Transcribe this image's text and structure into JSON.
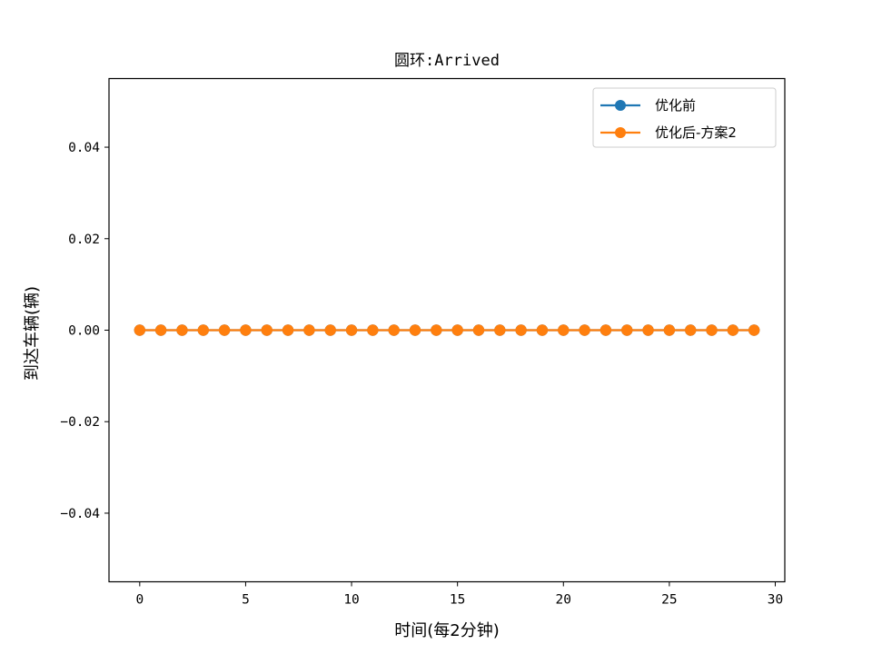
{
  "chart_data": {
    "type": "line",
    "title": "圆环:Arrived",
    "xlabel": "时间(每2分钟)",
    "ylabel": "到达车辆(辆)",
    "x": [
      0,
      1,
      2,
      3,
      4,
      5,
      6,
      7,
      8,
      9,
      10,
      11,
      12,
      13,
      14,
      15,
      16,
      17,
      18,
      19,
      20,
      21,
      22,
      23,
      24,
      25,
      26,
      27,
      28,
      29
    ],
    "series": [
      {
        "name": "优化前",
        "color": "#1f77b4",
        "marker": "circle",
        "values": [
          0,
          0,
          0,
          0,
          0,
          0,
          0,
          0,
          0,
          0,
          0,
          0,
          0,
          0,
          0,
          0,
          0,
          0,
          0,
          0,
          0,
          0,
          0,
          0,
          0,
          0,
          0,
          0,
          0,
          0
        ]
      },
      {
        "name": "优化后-方案2",
        "color": "#ff7f0e",
        "marker": "circle",
        "values": [
          0,
          0,
          0,
          0,
          0,
          0,
          0,
          0,
          0,
          0,
          0,
          0,
          0,
          0,
          0,
          0,
          0,
          0,
          0,
          0,
          0,
          0,
          0,
          0,
          0,
          0,
          0,
          0,
          0,
          0
        ]
      }
    ],
    "xlim": [
      -1.45,
      30.45
    ],
    "ylim": [
      -0.055,
      0.055
    ],
    "xticks": [
      0,
      5,
      10,
      15,
      20,
      25,
      30
    ],
    "xtick_labels": [
      "0",
      "5",
      "10",
      "15",
      "20",
      "25",
      "30"
    ],
    "yticks": [
      0.04,
      0.02,
      0.0,
      -0.02,
      -0.04
    ],
    "ytick_labels": [
      "0.04",
      "0.02",
      "0.00",
      "−0.02",
      "−0.04"
    ],
    "grid": false,
    "legend_position": "top-right"
  }
}
